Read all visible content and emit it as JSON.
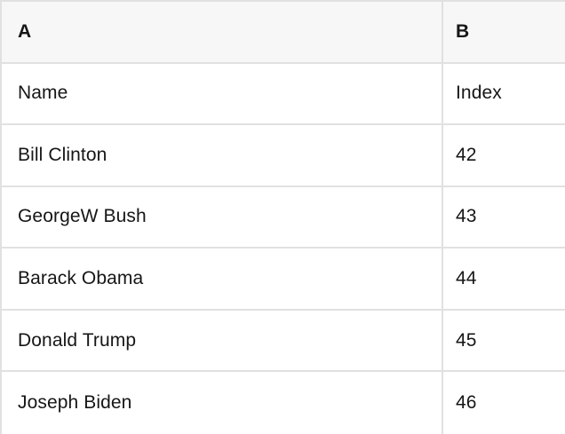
{
  "table": {
    "columns": [
      "A",
      "B"
    ],
    "rows": [
      [
        "Name",
        "Index"
      ],
      [
        "Bill Clinton",
        "42"
      ],
      [
        "GeorgeW Bush",
        "43"
      ],
      [
        "Barack Obama",
        "44"
      ],
      [
        "Donald Trump",
        "45"
      ],
      [
        "Joseph Biden",
        "46"
      ]
    ]
  },
  "colors": {
    "header_bg": "#f7f7f7",
    "row_bg": "#ffffff",
    "border": "#e1e1e1",
    "text": "#161616"
  }
}
